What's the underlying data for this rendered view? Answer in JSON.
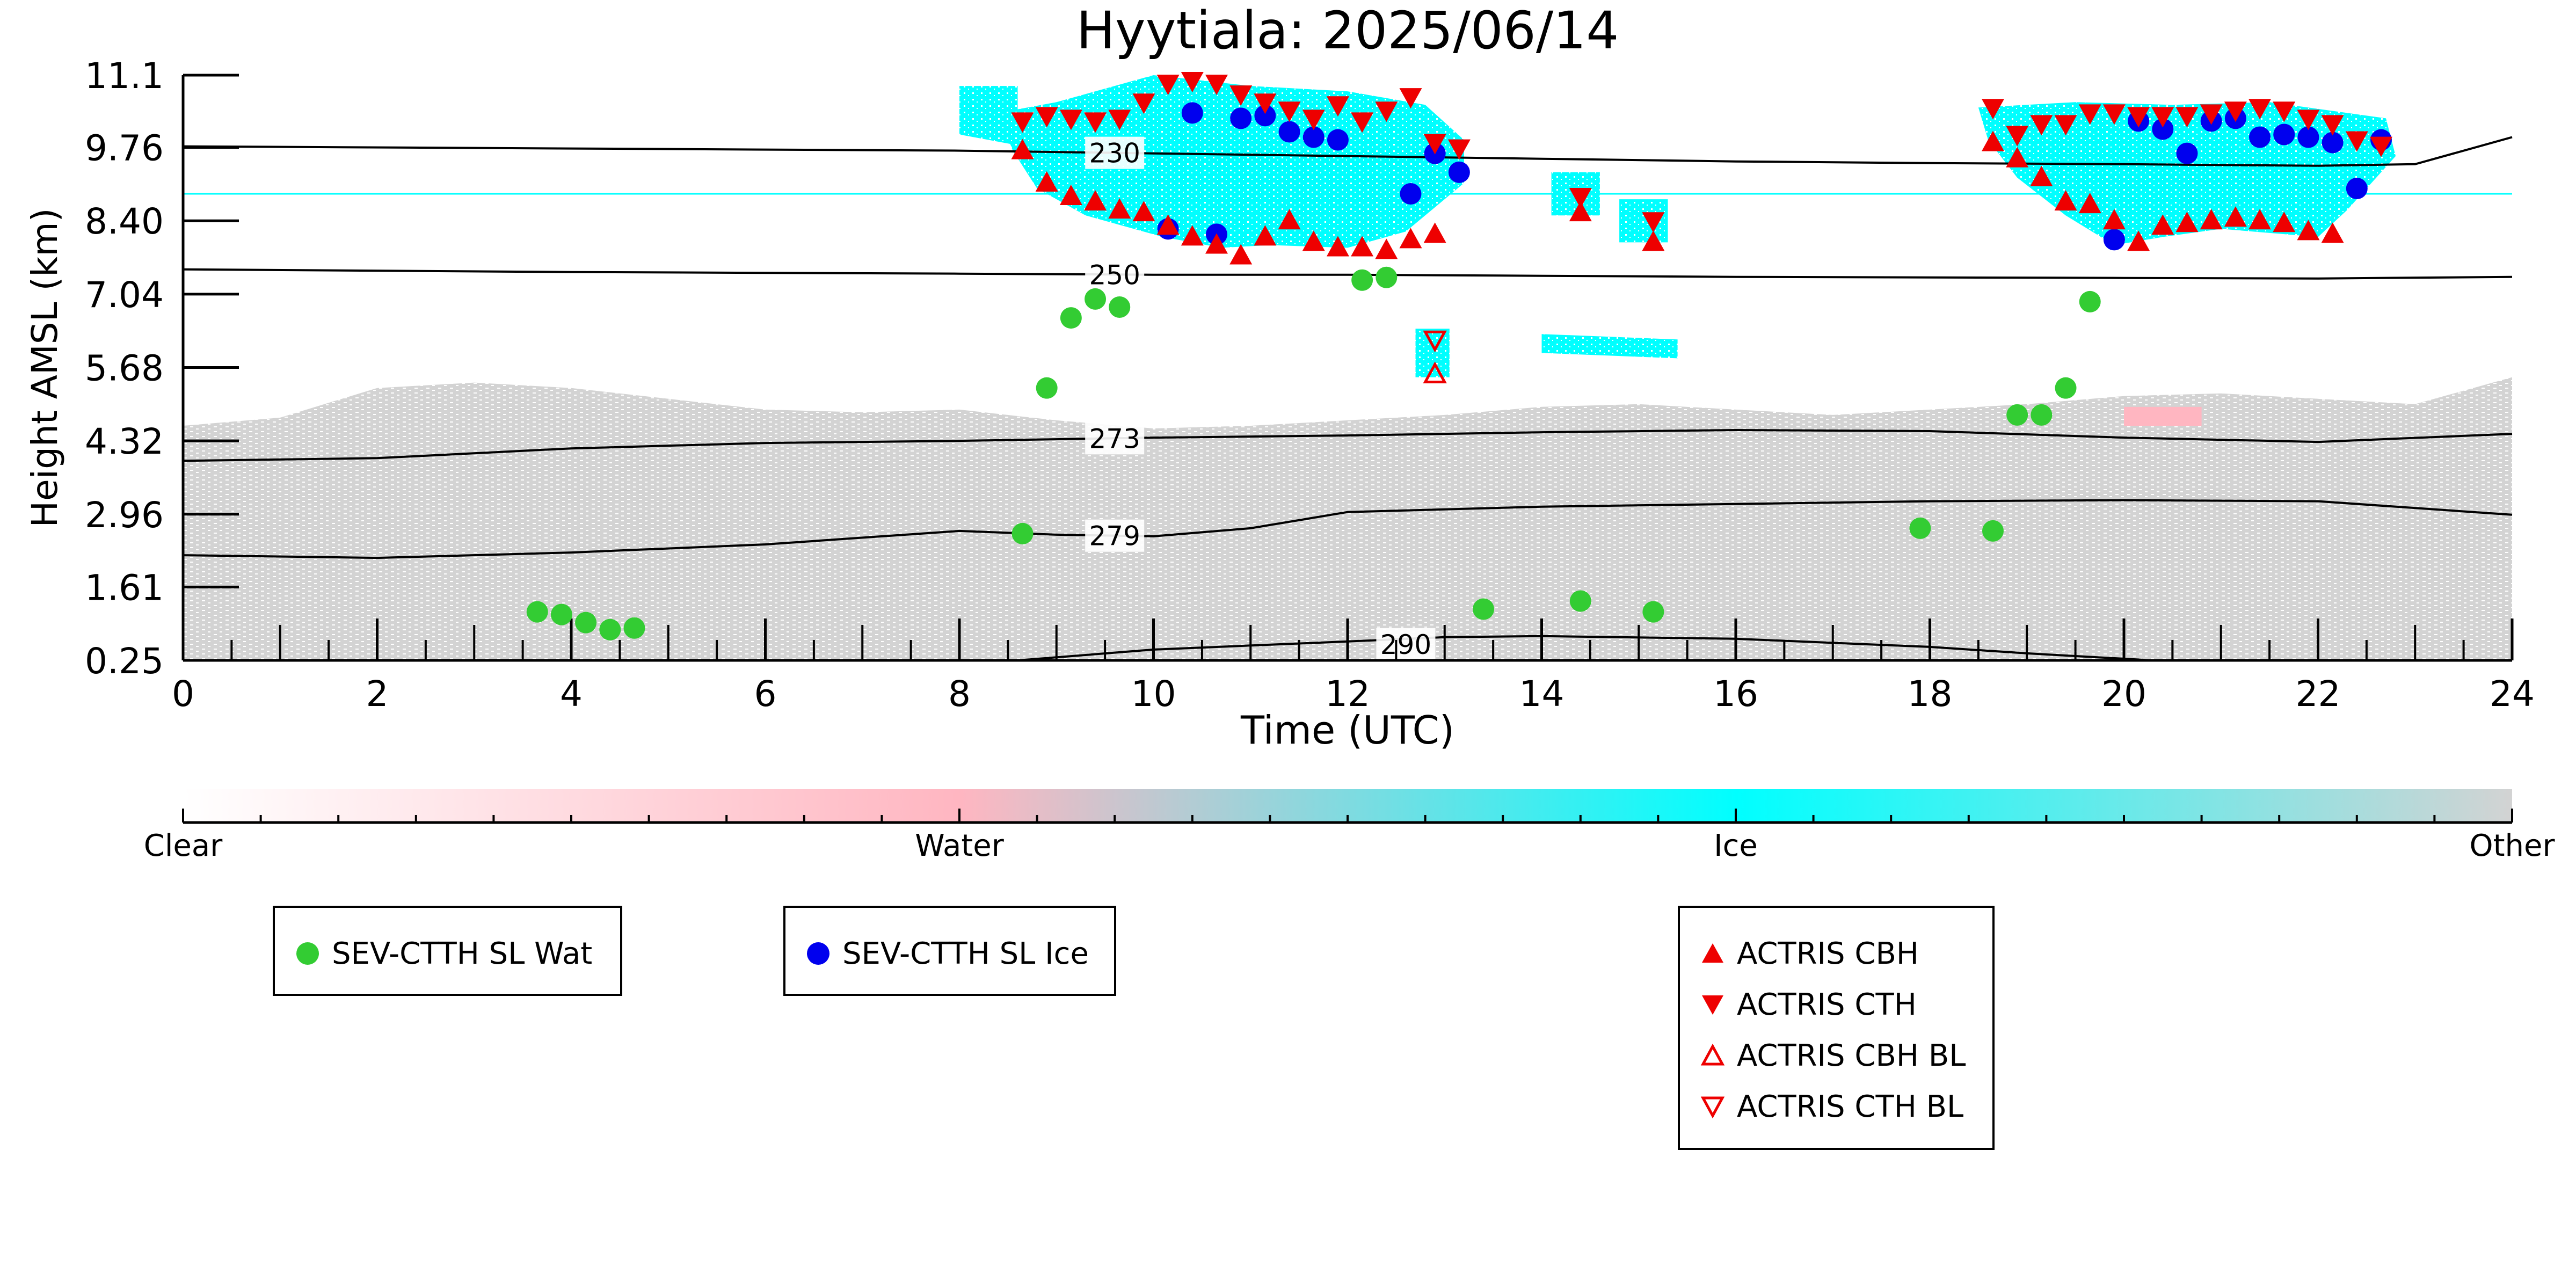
{
  "chart_data": {
    "type": "scatter",
    "title": "Hyytiala: 2025/06/14",
    "xlabel": "Time (UTC)",
    "ylabel": "Height AMSL (km)",
    "xlim": [
      0,
      24
    ],
    "ylim": [
      0.25,
      11.1
    ],
    "x_ticks": [
      "0",
      "2",
      "4",
      "6",
      "8",
      "10",
      "12",
      "14",
      "16",
      "18",
      "20",
      "22",
      "24"
    ],
    "y_ticks": [
      "0.25",
      "1.61",
      "2.96",
      "4.32",
      "5.68",
      "7.04",
      "8.40",
      "9.76",
      "11.1"
    ],
    "grid": false,
    "background_mask": "cloud phase classification (Clear / Water / Ice / Other)",
    "colorbar": {
      "labels": [
        "Clear",
        "Water",
        "Ice",
        "Other"
      ],
      "colors": [
        "#ffffff",
        "#ffb6c1",
        "#00ffff",
        "#d3d3d3"
      ]
    },
    "colors": {
      "water": "#33cc33",
      "ice": "#0000ee",
      "actris": "#ee0000",
      "ice_mask": "#00ffff",
      "other_mask": "#d3d3d3",
      "water_mask": "#ffb6c1"
    },
    "contours": [
      {
        "label": "230",
        "x": [
          0,
          4,
          8,
          10,
          12,
          14,
          16,
          18,
          20,
          22,
          23,
          24
        ],
        "y": [
          9.78,
          9.74,
          9.7,
          9.65,
          9.6,
          9.55,
          9.5,
          9.47,
          9.45,
          9.42,
          9.45,
          9.95
        ]
      },
      {
        "label": "250",
        "x": [
          0,
          4,
          8,
          10,
          12,
          14,
          16,
          18,
          20,
          22,
          24
        ],
        "y": [
          7.5,
          7.45,
          7.42,
          7.4,
          7.4,
          7.38,
          7.36,
          7.35,
          7.34,
          7.33,
          7.36
        ]
      },
      {
        "label": "273",
        "x": [
          0,
          2,
          4,
          6,
          8,
          10,
          12,
          14,
          16,
          18,
          20,
          22,
          24
        ],
        "y": [
          3.95,
          4.0,
          4.18,
          4.28,
          4.32,
          4.38,
          4.42,
          4.48,
          4.52,
          4.5,
          4.38,
          4.3,
          4.45
        ]
      },
      {
        "label": "279",
        "x": [
          0,
          2,
          4,
          6,
          8,
          9,
          10,
          11,
          12,
          14,
          16,
          18,
          20,
          22,
          24
        ],
        "y": [
          2.2,
          2.15,
          2.25,
          2.4,
          2.65,
          2.58,
          2.55,
          2.7,
          3.0,
          3.1,
          3.15,
          3.2,
          3.22,
          3.2,
          2.95
        ]
      },
      {
        "label": "290",
        "x": [
          8.6,
          10,
          12,
          13,
          14,
          16,
          18,
          19,
          20.3
        ],
        "y": [
          0.25,
          0.45,
          0.6,
          0.68,
          0.7,
          0.65,
          0.5,
          0.38,
          0.25
        ]
      }
    ],
    "series": [
      {
        "name": "SEV-CTTH SL Wat",
        "marker": "circle",
        "color": "#33cc33",
        "x": [
          3.65,
          3.9,
          4.15,
          4.4,
          4.65,
          8.65,
          8.9,
          9.15,
          9.4,
          9.65,
          12.15,
          12.4,
          13.4,
          14.4,
          15.15,
          17.9,
          18.65,
          18.9,
          19.15,
          19.4,
          19.65
        ],
        "y": [
          1.15,
          1.1,
          0.95,
          0.82,
          0.85,
          2.6,
          5.3,
          6.6,
          6.95,
          6.8,
          7.3,
          7.35,
          1.2,
          1.35,
          1.15,
          2.7,
          2.65,
          4.8,
          4.8,
          5.3,
          6.9
        ]
      },
      {
        "name": "SEV-CTTH SL Ice",
        "marker": "circle",
        "color": "#0000ee",
        "x": [
          10.15,
          10.4,
          10.65,
          10.9,
          11.15,
          11.4,
          11.65,
          11.9,
          12.65,
          12.9,
          13.15,
          19.9,
          20.15,
          20.4,
          20.65,
          20.9,
          21.15,
          21.4,
          21.65,
          21.9,
          22.15,
          22.4,
          22.65
        ],
        "y": [
          8.25,
          10.4,
          8.15,
          10.3,
          10.35,
          10.05,
          9.95,
          9.9,
          8.9,
          9.65,
          9.3,
          8.05,
          10.25,
          10.1,
          9.65,
          10.25,
          10.3,
          9.95,
          10.0,
          9.95,
          9.85,
          9.0,
          9.9
        ]
      },
      {
        "name": "ACTRIS CBH",
        "marker": "triangle-up",
        "color": "#ee0000",
        "x": [
          8.65,
          8.9,
          9.15,
          9.4,
          9.65,
          9.9,
          10.15,
          10.4,
          10.65,
          10.9,
          11.15,
          11.4,
          11.65,
          11.9,
          12.15,
          12.4,
          12.65,
          12.9,
          14.4,
          15.15,
          18.65,
          18.9,
          19.15,
          19.4,
          19.65,
          19.9,
          20.15,
          20.4,
          20.65,
          20.9,
          21.15,
          21.4,
          21.65,
          21.9,
          22.15
        ],
        "y": [
          9.7,
          9.1,
          8.85,
          8.75,
          8.6,
          8.55,
          8.3,
          8.1,
          7.95,
          7.75,
          8.1,
          8.4,
          8.0,
          7.9,
          7.9,
          7.85,
          8.05,
          8.15,
          8.55,
          8.0,
          9.85,
          9.55,
          9.2,
          8.75,
          8.7,
          8.4,
          8.0,
          8.3,
          8.35,
          8.4,
          8.45,
          8.4,
          8.35,
          8.2,
          8.15
        ]
      },
      {
        "name": "ACTRIS CTH",
        "marker": "triangle-down",
        "color": "#ee0000",
        "x": [
          8.65,
          8.9,
          9.15,
          9.4,
          9.65,
          9.9,
          10.15,
          10.4,
          10.65,
          10.9,
          11.15,
          11.4,
          11.65,
          11.9,
          12.15,
          12.4,
          12.65,
          12.9,
          13.15,
          14.4,
          15.15,
          18.65,
          18.9,
          19.15,
          19.4,
          19.65,
          19.9,
          20.15,
          20.4,
          20.65,
          20.9,
          21.15,
          21.4,
          21.65,
          21.9,
          22.15,
          22.4,
          22.65
        ],
        "y": [
          10.25,
          10.35,
          10.3,
          10.25,
          10.3,
          10.6,
          10.95,
          11.0,
          10.95,
          10.75,
          10.6,
          10.45,
          10.3,
          10.55,
          10.25,
          10.45,
          10.7,
          9.85,
          9.75,
          8.85,
          8.4,
          10.5,
          10.0,
          10.2,
          10.2,
          10.4,
          10.4,
          10.35,
          10.35,
          10.35,
          10.4,
          10.45,
          10.5,
          10.45,
          10.3,
          10.2,
          9.9,
          9.8
        ]
      },
      {
        "name": "ACTRIS CBH BL",
        "marker": "triangle-up-open",
        "color": "#ee0000",
        "x": [
          12.9
        ],
        "y": [
          5.55
        ]
      },
      {
        "name": "ACTRIS CTH BL",
        "marker": "triangle-down-open",
        "color": "#ee0000",
        "x": [
          12.9
        ],
        "y": [
          6.2
        ]
      }
    ]
  }
}
